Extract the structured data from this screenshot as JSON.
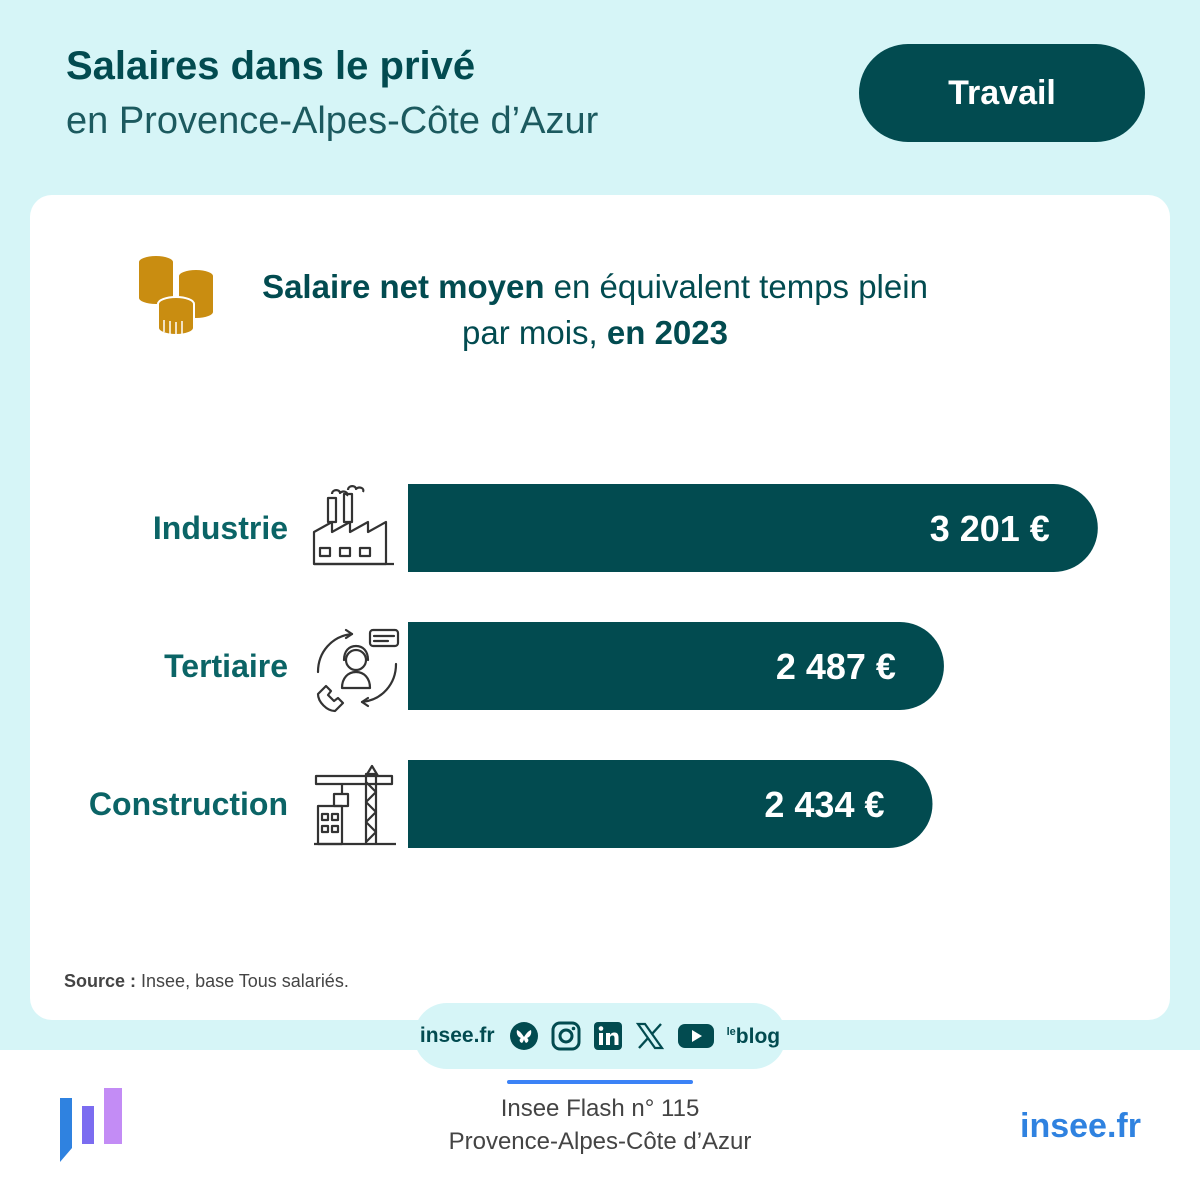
{
  "header": {
    "title": "Salaires dans le privé",
    "subtitle": "en Provence-Alpes-Côte d’Azur",
    "tag": "Travail"
  },
  "chart_heading": {
    "part1_bold": "Salaire net moyen",
    "part2": " en équivalent temps plein",
    "part3": "par mois, ",
    "part4_bold": "en 2023"
  },
  "chart_data": {
    "type": "bar",
    "orientation": "horizontal",
    "categories": [
      "Industrie",
      "Tertiaire",
      "Construction"
    ],
    "values": [
      3201,
      2487,
      2434
    ],
    "value_labels": [
      "3 201 €",
      "2 487 €",
      "2 434 €"
    ],
    "icons": [
      "factory-icon",
      "call-center-icon",
      "crane-icon"
    ],
    "bar_color": "#024b50",
    "grid": false
  },
  "source": {
    "label": "Source :",
    "text": " Insee, base Tous salariés."
  },
  "social": {
    "site": "insee.fr",
    "icons": [
      "bluesky-icon",
      "instagram-icon",
      "linkedin-icon",
      "x-icon",
      "youtube-icon",
      "blog-icon"
    ],
    "blog_label": "blog",
    "blog_small": "le"
  },
  "footer": {
    "publication": "Insee Flash n° 115",
    "region": "Provence-Alpes-Côte d’Azur",
    "site": "insee.fr"
  },
  "colors": {
    "dark_teal": "#024b50",
    "light_cyan": "#d6f5f7",
    "coin_gold": "#c98d11",
    "link_blue": "#2f82e0"
  }
}
